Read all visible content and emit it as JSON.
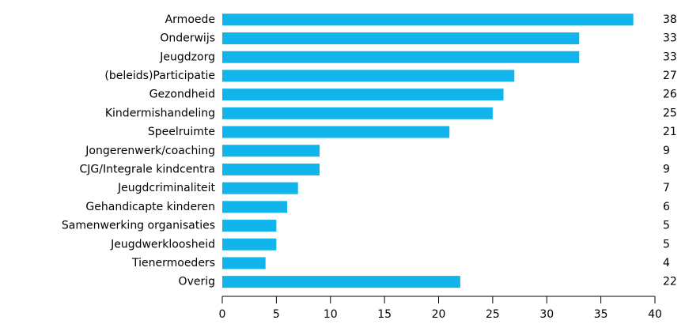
{
  "chart_data": {
    "type": "bar",
    "orientation": "horizontal",
    "categories": [
      "Armoede",
      "Onderwijs",
      "Jeugdzorg",
      "(beleids)Participatie",
      "Gezondheid",
      "Kindermishandeling",
      "Speelruimte",
      "Jongerenwerk/coaching",
      "CJG/Integrale kindcentra",
      "Jeugdcriminaliteit",
      "Gehandicapte kinderen",
      "Samenwerking organisaties",
      "Jeugdwerkloosheid",
      "Tienermoeders",
      "Overig"
    ],
    "values": [
      38,
      33,
      33,
      27,
      26,
      25,
      21,
      9,
      9,
      7,
      6,
      5,
      5,
      4,
      22
    ],
    "color": "#12b4ec",
    "xlim": [
      0,
      40
    ],
    "xticks": [
      0,
      5,
      10,
      15,
      20,
      25,
      30,
      35,
      40
    ]
  }
}
